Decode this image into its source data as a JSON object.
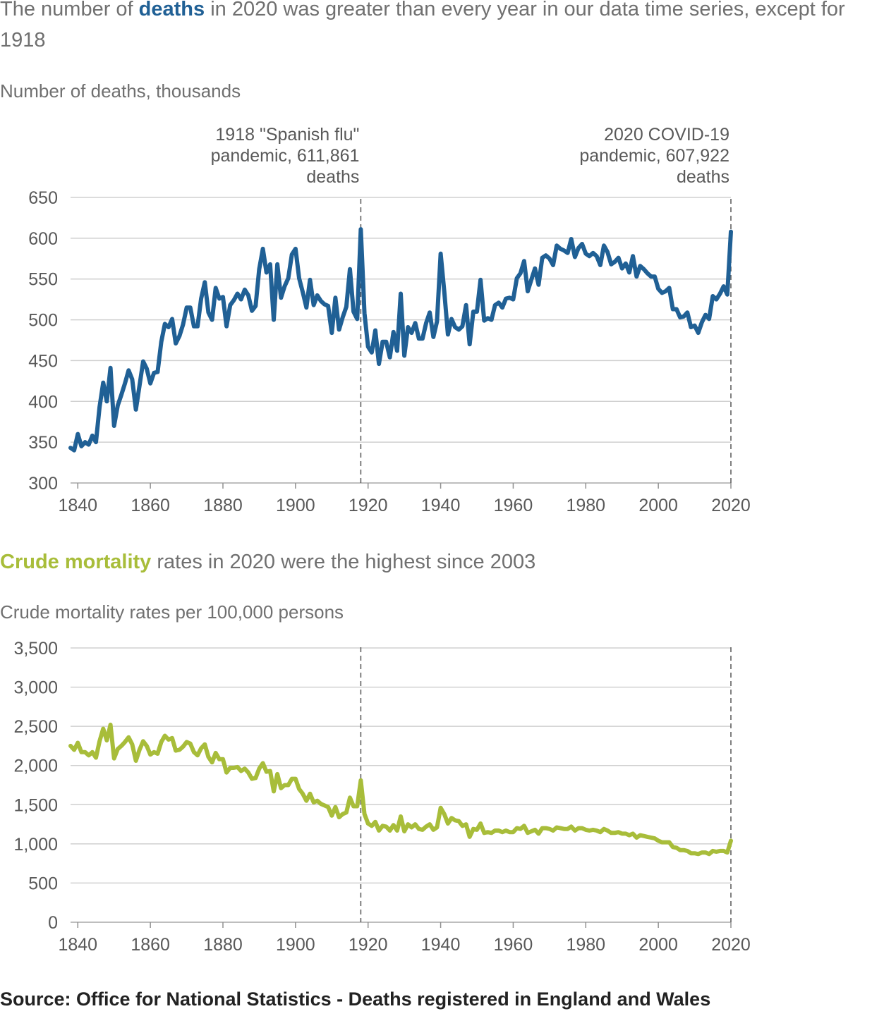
{
  "chart1": {
    "title_pre": "The number of ",
    "title_em": "deaths",
    "title_post": " in 2020 was greater than every year in our data time series, except for 1918",
    "subtitle": "Number of deaths, thousands",
    "color": "#206095",
    "annotations": [
      {
        "lines": [
          "1918 \"Spanish flu\"",
          "pandemic, 611,861",
          "deaths"
        ],
        "x": 1918
      },
      {
        "lines": [
          "2020 COVID-19",
          "pandemic, 607,922",
          "deaths"
        ],
        "x": 2020
      }
    ]
  },
  "chart2": {
    "title_em": "Crude mortality",
    "title_post": " rates in 2020 were the highest since 2003",
    "subtitle": "Crude mortality rates per 100,000 persons",
    "color": "#a8bd3a"
  },
  "source": "Source: Office for National Statistics - Deaths registered in England and Wales",
  "chart_data": [
    {
      "type": "line",
      "title": "The number of deaths in 2020 was greater than every year in our data time series, except for 1918",
      "ylabel": "Number of deaths, thousands",
      "xlim": [
        1838,
        2020
      ],
      "ylim": [
        300,
        650
      ],
      "yticks": [
        300,
        350,
        400,
        450,
        500,
        550,
        600,
        650
      ],
      "xticks": [
        1840,
        1860,
        1880,
        1900,
        1920,
        1940,
        1960,
        1980,
        2000,
        2020
      ],
      "grid": "horizontal",
      "reference_lines": [
        1918,
        2020
      ],
      "x": [
        1838,
        1839,
        1840,
        1841,
        1842,
        1843,
        1844,
        1845,
        1846,
        1847,
        1848,
        1849,
        1850,
        1851,
        1852,
        1853,
        1854,
        1855,
        1856,
        1857,
        1858,
        1859,
        1860,
        1861,
        1862,
        1863,
        1864,
        1865,
        1866,
        1867,
        1868,
        1869,
        1870,
        1871,
        1872,
        1873,
        1874,
        1875,
        1876,
        1877,
        1878,
        1879,
        1880,
        1881,
        1882,
        1883,
        1884,
        1885,
        1886,
        1887,
        1888,
        1889,
        1890,
        1891,
        1892,
        1893,
        1894,
        1895,
        1896,
        1897,
        1898,
        1899,
        1900,
        1901,
        1902,
        1903,
        1904,
        1905,
        1906,
        1907,
        1908,
        1909,
        1910,
        1911,
        1912,
        1913,
        1914,
        1915,
        1916,
        1917,
        1918,
        1919,
        1920,
        1921,
        1922,
        1923,
        1924,
        1925,
        1926,
        1927,
        1928,
        1929,
        1930,
        1931,
        1932,
        1933,
        1934,
        1935,
        1936,
        1937,
        1938,
        1939,
        1940,
        1941,
        1942,
        1943,
        1944,
        1945,
        1946,
        1947,
        1948,
        1949,
        1950,
        1951,
        1952,
        1953,
        1954,
        1955,
        1956,
        1957,
        1958,
        1959,
        1960,
        1961,
        1962,
        1963,
        1964,
        1965,
        1966,
        1967,
        1968,
        1969,
        1970,
        1971,
        1972,
        1973,
        1974,
        1975,
        1976,
        1977,
        1978,
        1979,
        1980,
        1981,
        1982,
        1983,
        1984,
        1985,
        1986,
        1987,
        1988,
        1989,
        1990,
        1991,
        1992,
        1993,
        1994,
        1995,
        1996,
        1997,
        1998,
        1999,
        2000,
        2001,
        2002,
        2003,
        2004,
        2005,
        2006,
        2007,
        2008,
        2009,
        2010,
        2011,
        2012,
        2013,
        2014,
        2015,
        2016,
        2017,
        2018,
        2019,
        2020
      ],
      "series": [
        {
          "values": [
            343,
            340,
            360,
            345,
            350,
            347,
            358,
            350,
            393,
            423,
            400,
            441,
            370,
            395,
            408,
            422,
            438,
            427,
            390,
            419,
            449,
            440,
            422,
            435,
            436,
            473,
            495,
            491,
            501,
            471,
            480,
            494,
            515,
            515,
            492,
            492,
            526,
            546,
            509,
            500,
            539,
            526,
            528,
            492,
            518,
            524,
            532,
            525,
            537,
            530,
            511,
            517,
            562,
            587,
            558,
            568,
            500,
            568,
            527,
            541,
            551,
            580,
            587,
            551,
            534,
            515,
            549,
            518,
            530,
            523,
            519,
            517,
            484,
            527,
            488,
            503,
            516,
            562,
            510,
            501,
            611,
            508,
            467,
            460,
            487,
            446,
            473,
            473,
            454,
            485,
            462,
            532,
            456,
            491,
            484,
            496,
            477,
            477,
            496,
            509,
            479,
            498,
            581,
            535,
            482,
            501,
            491,
            488,
            492,
            518,
            470,
            510,
            510,
            549,
            499,
            502,
            500,
            518,
            521,
            515,
            526,
            527,
            525,
            551,
            557,
            572,
            535,
            549,
            563,
            543,
            576,
            579,
            575,
            567,
            591,
            587,
            585,
            582,
            599,
            577,
            588,
            593,
            581,
            578,
            582,
            578,
            567,
            591,
            583,
            568,
            571,
            576,
            563,
            569,
            558,
            578,
            553,
            566,
            562,
            557,
            553,
            553,
            538,
            533,
            535,
            539,
            513,
            513,
            503,
            504,
            509,
            491,
            493,
            484,
            497,
            506,
            501,
            529,
            525,
            532,
            541,
            531,
            608
          ]
        }
      ]
    },
    {
      "type": "line",
      "title": "Crude mortality rates in 2020 were the highest since 2003",
      "ylabel": "Crude mortality rates per 100,000 persons",
      "xlim": [
        1838,
        2020
      ],
      "ylim": [
        0,
        3500
      ],
      "yticks": [
        0,
        500,
        1000,
        1500,
        2000,
        2500,
        3000,
        3500
      ],
      "xticks": [
        1840,
        1860,
        1880,
        1900,
        1920,
        1940,
        1960,
        1980,
        2000,
        2020
      ],
      "grid": "horizontal",
      "reference_lines": [
        1918,
        2020
      ],
      "x": [
        1838,
        1839,
        1840,
        1841,
        1842,
        1843,
        1844,
        1845,
        1846,
        1847,
        1848,
        1849,
        1850,
        1851,
        1852,
        1853,
        1854,
        1855,
        1856,
        1857,
        1858,
        1859,
        1860,
        1861,
        1862,
        1863,
        1864,
        1865,
        1866,
        1867,
        1868,
        1869,
        1870,
        1871,
        1872,
        1873,
        1874,
        1875,
        1876,
        1877,
        1878,
        1879,
        1880,
        1881,
        1882,
        1883,
        1884,
        1885,
        1886,
        1887,
        1888,
        1889,
        1890,
        1891,
        1892,
        1893,
        1894,
        1895,
        1896,
        1897,
        1898,
        1899,
        1900,
        1901,
        1902,
        1903,
        1904,
        1905,
        1906,
        1907,
        1908,
        1909,
        1910,
        1911,
        1912,
        1913,
        1914,
        1915,
        1916,
        1917,
        1918,
        1919,
        1920,
        1921,
        1922,
        1923,
        1924,
        1925,
        1926,
        1927,
        1928,
        1929,
        1930,
        1931,
        1932,
        1933,
        1934,
        1935,
        1936,
        1937,
        1938,
        1939,
        1940,
        1941,
        1942,
        1943,
        1944,
        1945,
        1946,
        1947,
        1948,
        1949,
        1950,
        1951,
        1952,
        1953,
        1954,
        1955,
        1956,
        1957,
        1958,
        1959,
        1960,
        1961,
        1962,
        1963,
        1964,
        1965,
        1966,
        1967,
        1968,
        1969,
        1970,
        1971,
        1972,
        1973,
        1974,
        1975,
        1976,
        1977,
        1978,
        1979,
        1980,
        1981,
        1982,
        1983,
        1984,
        1985,
        1986,
        1987,
        1988,
        1989,
        1990,
        1991,
        1992,
        1993,
        1994,
        1995,
        1996,
        1997,
        1998,
        1999,
        2000,
        2001,
        2002,
        2003,
        2004,
        2005,
        2006,
        2007,
        2008,
        2009,
        2010,
        2011,
        2012,
        2013,
        2014,
        2015,
        2016,
        2017,
        2018,
        2019,
        2020
      ],
      "series": [
        {
          "values": [
            2250,
            2200,
            2290,
            2170,
            2170,
            2130,
            2170,
            2100,
            2310,
            2470,
            2320,
            2520,
            2090,
            2210,
            2250,
            2300,
            2360,
            2270,
            2060,
            2200,
            2310,
            2250,
            2140,
            2170,
            2150,
            2300,
            2380,
            2330,
            2350,
            2190,
            2200,
            2240,
            2300,
            2280,
            2170,
            2130,
            2220,
            2270,
            2110,
            2040,
            2160,
            2080,
            2080,
            1910,
            1970,
            1970,
            1980,
            1930,
            1960,
            1910,
            1830,
            1840,
            1960,
            2030,
            1920,
            1930,
            1670,
            1890,
            1710,
            1750,
            1750,
            1830,
            1830,
            1700,
            1640,
            1550,
            1640,
            1530,
            1550,
            1510,
            1490,
            1470,
            1360,
            1470,
            1340,
            1380,
            1400,
            1590,
            1480,
            1480,
            1810,
            1380,
            1260,
            1230,
            1280,
            1170,
            1230,
            1220,
            1170,
            1240,
            1170,
            1350,
            1160,
            1250,
            1210,
            1250,
            1190,
            1180,
            1220,
            1250,
            1180,
            1210,
            1460,
            1380,
            1260,
            1330,
            1300,
            1290,
            1230,
            1250,
            1090,
            1190,
            1180,
            1260,
            1140,
            1150,
            1140,
            1170,
            1170,
            1150,
            1170,
            1150,
            1150,
            1200,
            1190,
            1230,
            1140,
            1160,
            1180,
            1130,
            1200,
            1200,
            1190,
            1170,
            1210,
            1200,
            1190,
            1190,
            1220,
            1170,
            1200,
            1200,
            1180,
            1170,
            1180,
            1170,
            1150,
            1190,
            1170,
            1140,
            1140,
            1150,
            1130,
            1130,
            1110,
            1130,
            1080,
            1110,
            1100,
            1090,
            1080,
            1070,
            1040,
            1020,
            1020,
            1020,
            960,
            950,
            920,
            920,
            910,
            880,
            880,
            870,
            890,
            890,
            870,
            910,
            900,
            910,
            910,
            890,
            1040
          ]
        }
      ]
    }
  ]
}
